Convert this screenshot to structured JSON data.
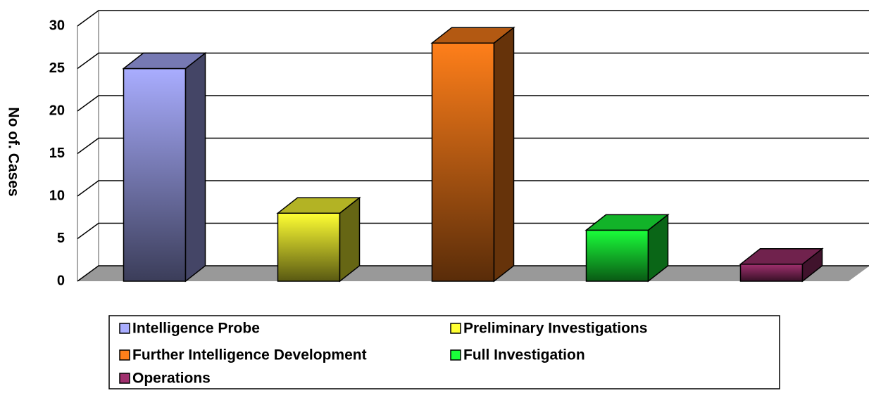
{
  "chart_data": {
    "type": "bar3d",
    "y_label": "No of. Cases",
    "categories": [
      "Intelligence Probe",
      "Preliminary Investigations",
      "Further Intelligence Development",
      "Full Investigation",
      "Operations"
    ],
    "values": [
      25,
      8,
      28,
      6,
      2
    ],
    "colors": [
      "#a9adff",
      "#ffff33",
      "#ff7f1a",
      "#1aff3a",
      "#a0306e"
    ],
    "ylim": [
      0,
      30
    ],
    "yticks": [
      0,
      5,
      10,
      15,
      20,
      25,
      30
    ],
    "grid": true
  }
}
